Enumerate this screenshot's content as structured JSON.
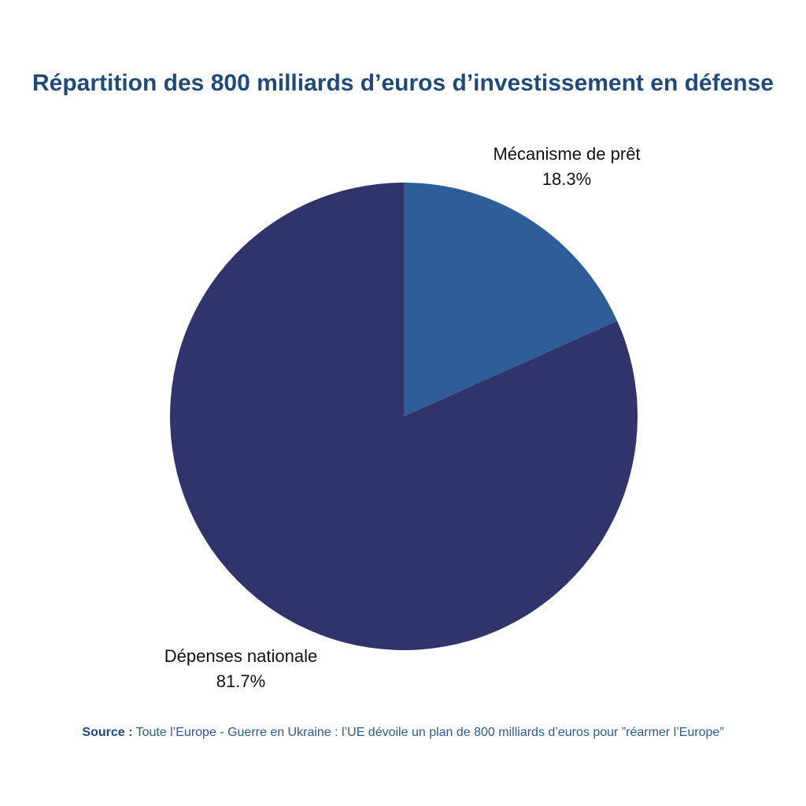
{
  "chart_data": {
    "type": "pie",
    "title": "Répartition des 800 milliards d’euros d’investissement en défense",
    "slices": [
      {
        "name": "Mécanisme de prêt",
        "value": 18.3,
        "label": "18.3%",
        "color": "#2e5e97"
      },
      {
        "name": "Dépenses nationale",
        "value": 81.7,
        "label": "81.7%",
        "color": "#31346b"
      }
    ],
    "start_angle_deg": 0,
    "direction": "clockwise",
    "legend": "none"
  },
  "source": {
    "label": "Source :",
    "text": "Toute l’Europe - Guerre en Ukraine : l’UE dévoile un plan de 800 milliards d’euros pour ”réarmer l’Europe”"
  },
  "colors": {
    "title": "#1f4a7c",
    "background": "#ffffff"
  }
}
